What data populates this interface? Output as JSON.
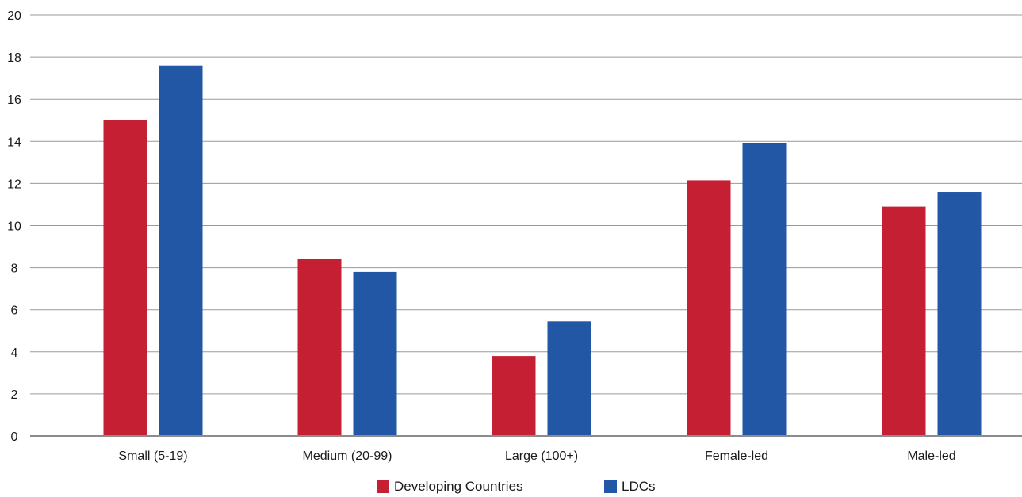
{
  "chart_data": {
    "type": "bar",
    "categories": [
      "Small (5-19)",
      "Medium (20-99)",
      "Large (100+)",
      "Female-led",
      "Male-led"
    ],
    "series": [
      {
        "name": "Developing Countries",
        "color": "#c41f33",
        "values": [
          15.0,
          8.4,
          3.8,
          12.15,
          10.9
        ]
      },
      {
        "name": "LDCs",
        "color": "#2257a5",
        "values": [
          17.6,
          7.8,
          5.45,
          13.9,
          11.6
        ]
      }
    ],
    "ylim": [
      0,
      20
    ],
    "yticks": [
      0,
      2,
      4,
      6,
      8,
      10,
      12,
      14,
      16,
      18,
      20
    ],
    "grid": true,
    "legend_position": "bottom-center",
    "title": "",
    "xlabel": "",
    "ylabel": ""
  }
}
